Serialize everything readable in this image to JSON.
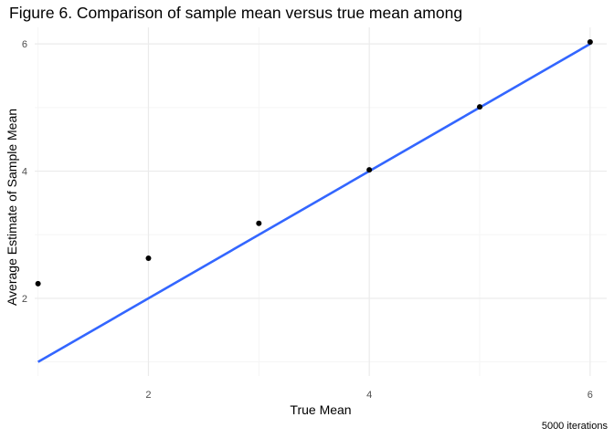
{
  "chart_data": {
    "type": "scatter",
    "title": "Figure 6. Comparison of sample mean versus true mean among",
    "caption": "5000 iterations",
    "xlabel": "True Mean",
    "ylabel": "Average Estimate of Sample Mean",
    "xlim": [
      0.97,
      6.15
    ],
    "ylim": [
      0.78,
      6.26
    ],
    "x_ticks": [
      2,
      4,
      6
    ],
    "y_ticks": [
      2,
      4,
      6
    ],
    "x_tick_labels": [
      "2",
      "4",
      "6"
    ],
    "y_tick_labels": [
      "2",
      "4",
      "6"
    ],
    "grid": true,
    "points": {
      "x": [
        1,
        2,
        3,
        4,
        5,
        6
      ],
      "y": [
        2.23,
        2.63,
        3.18,
        4.02,
        5.01,
        6.03
      ]
    },
    "reference_line": {
      "type": "line",
      "x": [
        1,
        6
      ],
      "y": [
        1,
        6
      ],
      "color": "#3366ff"
    },
    "colors": {
      "points": "#000000",
      "line": "#3366ff",
      "grid_major": "#ebebeb",
      "grid_minor": "#f5f5f5"
    }
  }
}
